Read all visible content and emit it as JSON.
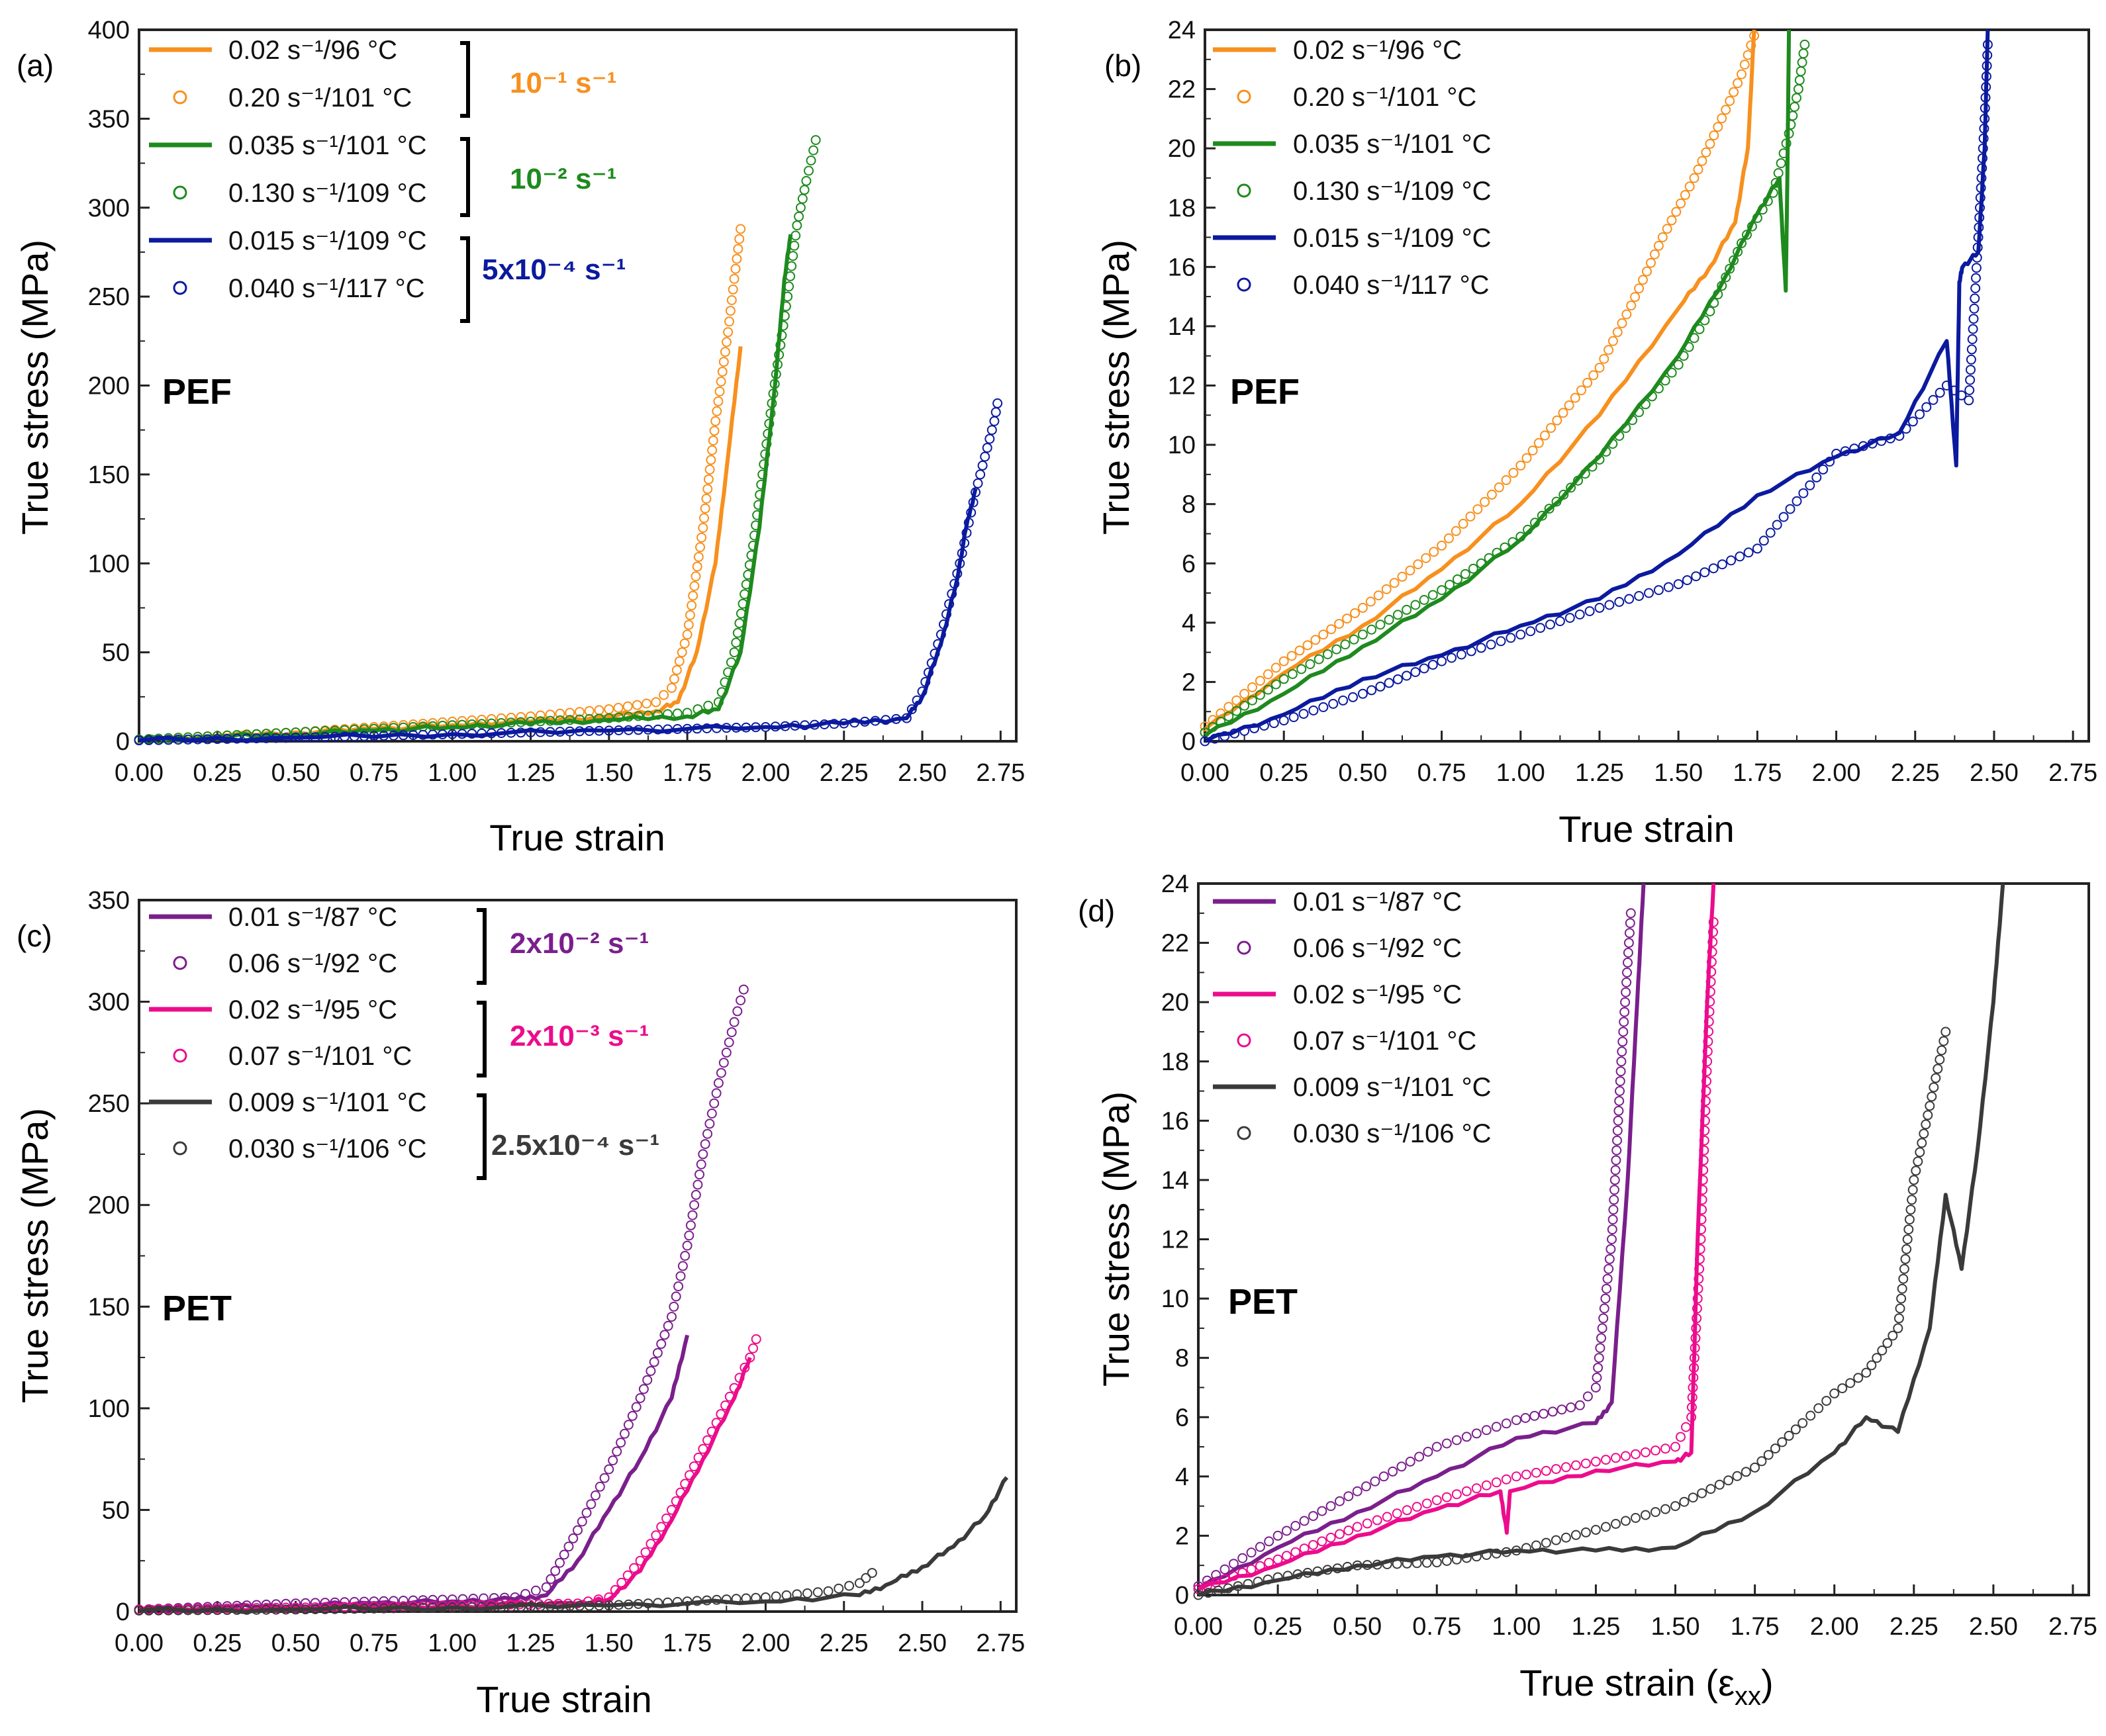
{
  "colors": {
    "orange": "#f7901e",
    "green": "#1e8a1e",
    "navy": "#0b1a9e",
    "purple": "#7a1f8c",
    "pink": "#ec0c8c",
    "gray": "#3a3a3a",
    "purple_light": "#b050c8",
    "gray_marker": "#2a2a2a"
  },
  "chart_data": [
    {
      "id": "a",
      "type": "line",
      "panel_label": "(a)",
      "material": "PEF",
      "xlabel": "True strain",
      "ylabel": "True stress (MPa)",
      "xlim": [
        0,
        2.8
      ],
      "ylim": [
        0,
        400
      ],
      "xticks": [
        "0.00",
        "0.25",
        "0.50",
        "0.75",
        "1.00",
        "1.25",
        "1.50",
        "1.75",
        "2.00",
        "2.25",
        "2.50",
        "2.75"
      ],
      "yticks": [
        "0",
        "50",
        "100",
        "150",
        "200",
        "250",
        "300",
        "350",
        "400"
      ],
      "groups": [
        {
          "label": "10⁻¹ s⁻¹",
          "color": "orange"
        },
        {
          "label": "10⁻² s⁻¹",
          "color": "green"
        },
        {
          "label": "5x10⁻⁴ s⁻¹",
          "color": "navy"
        }
      ],
      "series": [
        {
          "name": "0.02 s⁻¹/96 °C",
          "style": "line",
          "color": "orange",
          "x": [
            0,
            0.25,
            0.5,
            0.75,
            1.0,
            1.25,
            1.5,
            1.65,
            1.72,
            1.78,
            1.84,
            1.88,
            1.92
          ],
          "y": [
            1,
            3,
            5,
            7,
            9,
            11,
            14,
            17,
            22,
            50,
            100,
            160,
            222
          ]
        },
        {
          "name": "0.20 s⁻¹/101 °C",
          "style": "marker",
          "color": "orange",
          "x": [
            0,
            0.25,
            0.5,
            0.75,
            1.0,
            1.25,
            1.5,
            1.65,
            1.7,
            1.75,
            1.8,
            1.84,
            1.88,
            1.9,
            1.92
          ],
          "y": [
            1,
            3,
            5,
            8,
            11,
            14,
            18,
            22,
            30,
            60,
            120,
            180,
            230,
            260,
            288
          ]
        },
        {
          "name": "0.035 s⁻¹/101 °C",
          "style": "line",
          "color": "green",
          "x": [
            0,
            0.25,
            0.5,
            0.75,
            1.0,
            1.25,
            1.5,
            1.75,
            1.85,
            1.92,
            1.98,
            2.03,
            2.06,
            2.08
          ],
          "y": [
            1,
            2.5,
            4,
            6,
            8,
            10,
            12,
            14,
            18,
            50,
            120,
            200,
            260,
            285
          ]
        },
        {
          "name": "0.130 s⁻¹/109 °C",
          "style": "marker",
          "color": "green",
          "x": [
            0,
            0.25,
            0.5,
            0.75,
            1.0,
            1.25,
            1.5,
            1.75,
            1.85,
            1.9,
            1.96,
            2.02,
            2.07,
            2.1,
            2.13,
            2.16
          ],
          "y": [
            1,
            3,
            5,
            7,
            9,
            11,
            13,
            16,
            22,
            50,
            110,
            190,
            250,
            290,
            315,
            338
          ]
        },
        {
          "name": "0.015 s⁻¹/109 °C",
          "style": "line",
          "color": "navy",
          "x": [
            0,
            0.5,
            1.0,
            1.5,
            2.0,
            2.25,
            2.45,
            2.5,
            2.56,
            2.61,
            2.64,
            2.67
          ],
          "y": [
            0.5,
            2,
            4,
            6,
            8,
            10,
            13,
            25,
            55,
            90,
            120,
            142
          ]
        },
        {
          "name": "0.040 s⁻¹/117 °C",
          "style": "marker",
          "color": "navy",
          "x": [
            0,
            0.5,
            1.0,
            1.5,
            2.0,
            2.25,
            2.45,
            2.5,
            2.56,
            2.62,
            2.67,
            2.7,
            2.73,
            2.74
          ],
          "y": [
            0.5,
            2,
            4,
            6,
            8,
            10,
            13,
            28,
            60,
            100,
            140,
            160,
            180,
            190
          ]
        }
      ]
    },
    {
      "id": "b",
      "type": "line",
      "panel_label": "(b)",
      "material": "PEF",
      "xlabel": "True strain",
      "ylabel": "True stress (MPa)",
      "xlim": [
        0,
        2.8
      ],
      "ylim": [
        0,
        24
      ],
      "xticks": [
        "0.00",
        "0.25",
        "0.50",
        "0.75",
        "1.00",
        "1.25",
        "1.50",
        "1.75",
        "2.00",
        "2.25",
        "2.50",
        "2.75"
      ],
      "yticks": [
        "0",
        "2",
        "4",
        "6",
        "8",
        "10",
        "12",
        "14",
        "16",
        "18",
        "20",
        "22",
        "24"
      ],
      "series": [
        {
          "name": "0.02 s⁻¹/96 °C",
          "style": "line",
          "color": "orange",
          "x": [
            0,
            0.25,
            0.5,
            0.75,
            1.0,
            1.25,
            1.5,
            1.6,
            1.68,
            1.72,
            1.74
          ],
          "y": [
            0.4,
            2.3,
            3.9,
            5.8,
            8.0,
            11.0,
            14.6,
            16.0,
            17.5,
            20.0,
            24
          ]
        },
        {
          "name": "0.20 s⁻¹/101 °C",
          "style": "marker",
          "color": "orange",
          "x": [
            0,
            0.25,
            0.5,
            0.75,
            1.0,
            1.25,
            1.35,
            1.45,
            1.55,
            1.65,
            1.7,
            1.74
          ],
          "y": [
            0.5,
            2.7,
            4.5,
            6.6,
            9.3,
            12.6,
            14.7,
            17.0,
            19.0,
            21.3,
            22.5,
            23.8
          ]
        },
        {
          "name": "0.035 s⁻¹/101 °C",
          "style": "line",
          "color": "green",
          "x": [
            0,
            0.25,
            0.5,
            0.75,
            1.0,
            1.25,
            1.5,
            1.65,
            1.75,
            1.82,
            1.84,
            1.845,
            1.85
          ],
          "y": [
            0.2,
            1.6,
            3.2,
            4.8,
            6.8,
            9.6,
            13.0,
            15.7,
            17.8,
            19.0,
            15.2,
            19.0,
            24
          ]
        },
        {
          "name": "0.130 s⁻¹/109 °C",
          "style": "marker",
          "color": "green",
          "x": [
            0,
            0.25,
            0.5,
            0.75,
            1.0,
            1.25,
            1.5,
            1.6,
            1.7,
            1.8,
            1.85,
            1.88,
            1.9
          ],
          "y": [
            0.3,
            2.1,
            3.6,
            5.1,
            6.9,
            9.5,
            12.7,
            14.5,
            16.8,
            18.5,
            20.5,
            22.0,
            23.5
          ]
        },
        {
          "name": "0.015 s⁻¹/109 °C",
          "style": "line",
          "color": "navy",
          "x": [
            0,
            0.25,
            0.5,
            0.75,
            1.0,
            1.25,
            1.5,
            1.75,
            2.0,
            2.2,
            2.35,
            2.38,
            2.39,
            2.4,
            2.45,
            2.47,
            2.48
          ],
          "y": [
            0,
            0.9,
            2.1,
            2.9,
            3.9,
            4.8,
            6.3,
            8.3,
            9.6,
            10.4,
            13.5,
            9.3,
            15.5,
            16.0,
            16.5,
            20.0,
            24
          ]
        },
        {
          "name": "0.040 s⁻¹/117 °C",
          "style": "marker",
          "color": "navy",
          "x": [
            0,
            0.25,
            0.5,
            0.75,
            1.0,
            1.25,
            1.5,
            1.75,
            2.0,
            2.2,
            2.35,
            2.42,
            2.45,
            2.47,
            2.48
          ],
          "y": [
            0,
            0.7,
            1.6,
            2.7,
            3.6,
            4.5,
            5.3,
            6.5,
            9.7,
            10.3,
            12.0,
            11.5,
            17.0,
            21.0,
            23.5
          ]
        }
      ]
    },
    {
      "id": "c",
      "type": "line",
      "panel_label": "(c)",
      "material": "PET",
      "xlabel": "True strain",
      "ylabel": "True stress (MPa)",
      "xlim": [
        0,
        2.8
      ],
      "ylim": [
        0,
        350
      ],
      "xticks": [
        "0.00",
        "0.25",
        "0.50",
        "0.75",
        "1.00",
        "1.25",
        "1.50",
        "1.75",
        "2.00",
        "2.25",
        "2.50",
        "2.75"
      ],
      "yticks": [
        "0",
        "50",
        "100",
        "150",
        "200",
        "250",
        "300",
        "350"
      ],
      "groups": [
        {
          "label": "2x10⁻² s⁻¹",
          "color": "purple"
        },
        {
          "label": "2x10⁻³ s⁻¹",
          "color": "pink"
        },
        {
          "label": "2.5x10⁻⁴ s⁻¹",
          "color": "gray"
        }
      ],
      "series": [
        {
          "name": "0.01 s⁻¹/87 °C",
          "style": "line",
          "color": "purple",
          "x": [
            0,
            0.25,
            0.5,
            0.75,
            1.0,
            1.2,
            1.3,
            1.4,
            1.5,
            1.6,
            1.7,
            1.75
          ],
          "y": [
            1,
            2,
            3,
            4,
            5,
            6,
            8,
            25,
            50,
            75,
            105,
            136
          ]
        },
        {
          "name": "0.06 s⁻¹/92 °C",
          "style": "marker",
          "color": "purple",
          "x": [
            0,
            0.25,
            0.5,
            0.75,
            1.0,
            1.2,
            1.3,
            1.4,
            1.5,
            1.6,
            1.7,
            1.75,
            1.8,
            1.85,
            1.9,
            1.93
          ],
          "y": [
            1,
            2.5,
            4,
            5,
            6,
            7,
            12,
            40,
            70,
            105,
            145,
            180,
            225,
            260,
            290,
            306
          ]
        },
        {
          "name": "0.02 s⁻¹/95 °C",
          "style": "line",
          "color": "pink",
          "x": [
            0,
            0.5,
            1.0,
            1.4,
            1.5,
            1.6,
            1.7,
            1.8,
            1.9,
            1.95
          ],
          "y": [
            1,
            2,
            3,
            4,
            6,
            20,
            45,
            75,
            105,
            125
          ]
        },
        {
          "name": "0.07 s⁻¹/101 °C",
          "style": "marker",
          "color": "pink",
          "x": [
            0,
            0.5,
            1.0,
            1.4,
            1.5,
            1.6,
            1.7,
            1.8,
            1.9,
            1.95,
            1.97
          ],
          "y": [
            1,
            2,
            3,
            4,
            7,
            25,
            50,
            80,
            110,
            125,
            134
          ]
        },
        {
          "name": "0.009 s⁻¹/101 °C",
          "style": "line",
          "color": "gray",
          "x": [
            0,
            0.5,
            1.0,
            1.5,
            2.0,
            2.3,
            2.4,
            2.5,
            2.6,
            2.7,
            2.77
          ],
          "y": [
            0.5,
            1,
            2,
            3,
            5,
            8,
            14,
            22,
            32,
            47,
            66
          ]
        },
        {
          "name": "0.030 s⁻¹/106 °C",
          "style": "marker",
          "color": "gray",
          "x": [
            0,
            0.5,
            1.0,
            1.5,
            1.75,
            2.0,
            2.2,
            2.3,
            2.34
          ],
          "y": [
            0.5,
            1,
            2,
            3,
            5,
            7,
            10,
            14,
            19
          ]
        }
      ]
    },
    {
      "id": "d",
      "type": "line",
      "panel_label": "(d)",
      "material": "PET",
      "xlabel_main": "True strain (ε",
      "xlabel_sub": "xx",
      "xlabel_end": ")",
      "ylabel": "True stress (MPa)",
      "xlim": [
        0,
        2.8
      ],
      "ylim": [
        0,
        24
      ],
      "xticks": [
        "0.00",
        "0.25",
        "0.50",
        "0.75",
        "1.00",
        "1.25",
        "1.50",
        "1.75",
        "2.00",
        "2.25",
        "2.50",
        "2.75"
      ],
      "yticks": [
        "0",
        "2",
        "4",
        "6",
        "8",
        "10",
        "12",
        "14",
        "16",
        "18",
        "20",
        "22",
        "24"
      ],
      "series": [
        {
          "name": "0.01 s⁻¹/87 °C",
          "style": "line",
          "color": "purple",
          "x": [
            0,
            0.25,
            0.5,
            0.75,
            1.0,
            1.25,
            1.3,
            1.35,
            1.38,
            1.4
          ],
          "y": [
            0.2,
            1.6,
            2.8,
            4.0,
            5.3,
            5.8,
            6.5,
            14.0,
            20.0,
            24
          ]
        },
        {
          "name": "0.06 s⁻¹/92 °C",
          "style": "marker",
          "color": "purple",
          "x": [
            0,
            0.25,
            0.5,
            0.75,
            1.0,
            1.2,
            1.25,
            1.3,
            1.33,
            1.36
          ],
          "y": [
            0.3,
            2.0,
            3.5,
            5.0,
            5.9,
            6.4,
            7.0,
            12.0,
            18.0,
            23.0
          ]
        },
        {
          "name": "0.02 s⁻¹/95 °C",
          "style": "line",
          "color": "pink",
          "x": [
            0,
            0.25,
            0.5,
            0.75,
            0.95,
            0.97,
            0.98,
            1.25,
            1.5,
            1.55,
            1.57,
            1.6,
            1.62
          ],
          "y": [
            0.2,
            1.0,
            2.0,
            2.9,
            3.5,
            2.1,
            3.5,
            4.2,
            4.5,
            4.8,
            12.0,
            20.0,
            24
          ]
        },
        {
          "name": "0.07 s⁻¹/101 °C",
          "style": "marker",
          "color": "pink",
          "x": [
            0,
            0.25,
            0.5,
            0.75,
            1.0,
            1.25,
            1.5,
            1.55,
            1.58,
            1.6,
            1.62
          ],
          "y": [
            0.2,
            1.2,
            2.3,
            3.2,
            4.0,
            4.5,
            5.0,
            6.0,
            12.0,
            18.0,
            22.7
          ]
        },
        {
          "name": "0.009 s⁻¹/101 °C",
          "style": "line",
          "color": "gray",
          "x": [
            0,
            0.25,
            0.5,
            0.75,
            1.0,
            1.25,
            1.5,
            1.75,
            2.0,
            2.1,
            2.2,
            2.3,
            2.35,
            2.4,
            2.45,
            2.5,
            2.53
          ],
          "y": [
            0,
            0.5,
            1.0,
            1.3,
            1.5,
            1.5,
            1.6,
            2.8,
            4.8,
            6.0,
            5.5,
            9.0,
            13.5,
            11.0,
            15.0,
            20.0,
            24
          ]
        },
        {
          "name": "0.030 s⁻¹/106 °C",
          "style": "marker",
          "color": "gray",
          "x": [
            0,
            0.25,
            0.5,
            0.75,
            1.0,
            1.25,
            1.5,
            1.75,
            1.9,
            2.0,
            2.1,
            2.2,
            2.25,
            2.3,
            2.35
          ],
          "y": [
            0,
            0.6,
            1.0,
            1.1,
            1.5,
            2.2,
            3.0,
            4.3,
            5.8,
            6.8,
            7.5,
            9.0,
            14.0,
            16.5,
            19.0
          ]
        }
      ]
    }
  ]
}
